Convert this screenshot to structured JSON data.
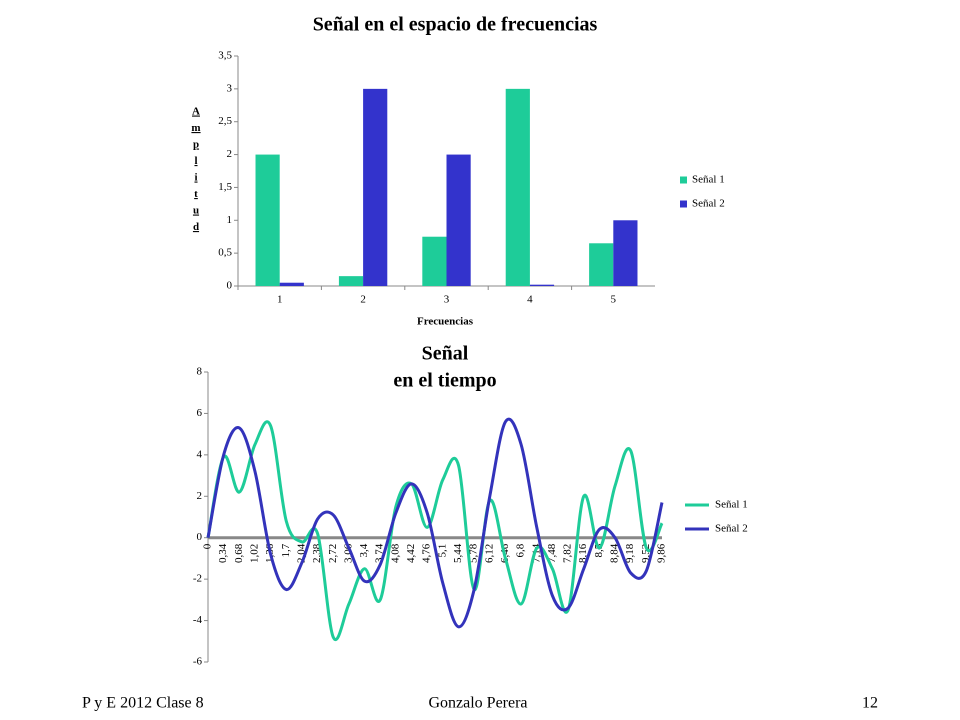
{
  "chart_data": [
    {
      "type": "bar",
      "title": "Señal en el espacio de frecuencias",
      "x_label": "Frecuencias",
      "y_label": "Amplitud",
      "categories": [
        "1",
        "2",
        "3",
        "4",
        "5"
      ],
      "series": [
        {
          "name": "Señal 1",
          "color": "#1ecc99",
          "values": [
            2,
            0.15,
            0.75,
            3,
            0.65
          ]
        },
        {
          "name": "Señal 2",
          "color": "#3333cc",
          "values": [
            0.05,
            3,
            2,
            0.02,
            1
          ]
        }
      ],
      "ylim": [
        0,
        3.5
      ],
      "yticks": [
        0,
        {
          "value": 0.5,
          "label": "0,5"
        },
        1,
        {
          "value": 1.5,
          "label": "1,5"
        },
        2,
        {
          "value": 2.5,
          "label": "2,5"
        },
        3,
        {
          "value": 3.5,
          "label": "3,5"
        }
      ],
      "legend": "right"
    },
    {
      "type": "line",
      "title": [
        "Señal",
        "en el tiempo"
      ],
      "categories": [
        "0",
        "0,34",
        "0,68",
        "1,02",
        "1,36",
        "1,7",
        "2,04",
        "2,38",
        "2,72",
        "3,06",
        "3,4",
        "3,74",
        "4,08",
        "4,42",
        "4,76",
        "5,1",
        "5,44",
        "5,78",
        "6,12",
        "6,46",
        "6,8",
        "7,14",
        "7,48",
        "7,82",
        "8,16",
        "8,5",
        "8,84",
        "9,18",
        "9,52",
        "9,86"
      ],
      "series": [
        {
          "name": "Señal 1",
          "color": "#1ecc99",
          "values": [
            0,
            3.9,
            2.2,
            4.5,
            5.4,
            0.8,
            -0.2,
            0.2,
            -4.8,
            -3.2,
            -1.5,
            -3,
            1.5,
            2.6,
            0.5,
            2.8,
            3.5,
            -2.5,
            1.8,
            -1,
            -3.2,
            -0.5,
            -1.5,
            -3.5,
            2,
            -0.5,
            2.5,
            4.2,
            -0.5,
            0.7
          ]
        },
        {
          "name": "Señal 2",
          "color": "#3333bb",
          "values": [
            0,
            4,
            5.3,
            3.2,
            -0.8,
            -2.5,
            -1.2,
            0.9,
            1.1,
            -0.5,
            -2.1,
            -1.3,
            1.2,
            2.6,
            1.2,
            -2.2,
            -4.3,
            -2.5,
            2,
            5.6,
            4.5,
            0.5,
            -2.8,
            -3.4,
            -1.5,
            0.4,
            0,
            -1.7,
            -1.6,
            1.7
          ]
        }
      ],
      "ylim": [
        -6,
        8
      ],
      "yticks": [
        -6,
        -4,
        -2,
        0,
        2,
        4,
        6,
        8
      ],
      "legend": "right"
    }
  ],
  "footer": {
    "left": "P y E 2012 Clase 8",
    "center": "Gonzalo Perera",
    "right": "12"
  }
}
